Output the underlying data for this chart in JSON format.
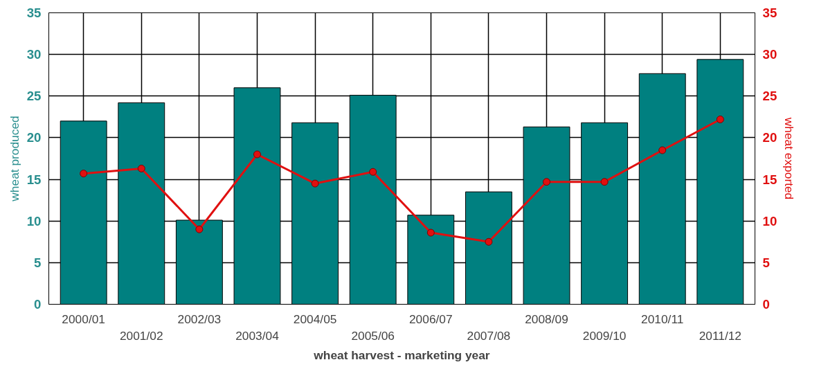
{
  "chart_data": {
    "type": "bar",
    "xlabel": "wheat harvest - marketing year",
    "ylabel": "wheat produced",
    "y2label": "wheat exported",
    "categories": [
      "2000/01",
      "2001/02",
      "2002/03",
      "2003/04",
      "2004/05",
      "2005/06",
      "2006/07",
      "2007/08",
      "2008/09",
      "2009/10",
      "2010/11",
      "2011/12"
    ],
    "series": [
      {
        "color": "#008080",
        "values": [
          22.0,
          24.2,
          10.1,
          26.0,
          21.8,
          25.1,
          10.7,
          13.5,
          21.3,
          21.8,
          27.7,
          29.4
        ]
      },
      {
        "type": "line",
        "axis": "y2",
        "color": "#e01010",
        "marker": "circle",
        "values": [
          15.7,
          16.3,
          9.0,
          18.0,
          14.5,
          15.9,
          8.6,
          7.5,
          14.7,
          14.7,
          18.5,
          22.2
        ]
      }
    ],
    "ylim": [
      0,
      35
    ],
    "yticks": [
      0,
      5,
      10,
      15,
      20,
      25,
      30,
      35
    ],
    "y2lim": [
      0,
      35
    ],
    "y2ticks": [
      0,
      5,
      10,
      15,
      20,
      25,
      30,
      35
    ],
    "grid": true
  }
}
